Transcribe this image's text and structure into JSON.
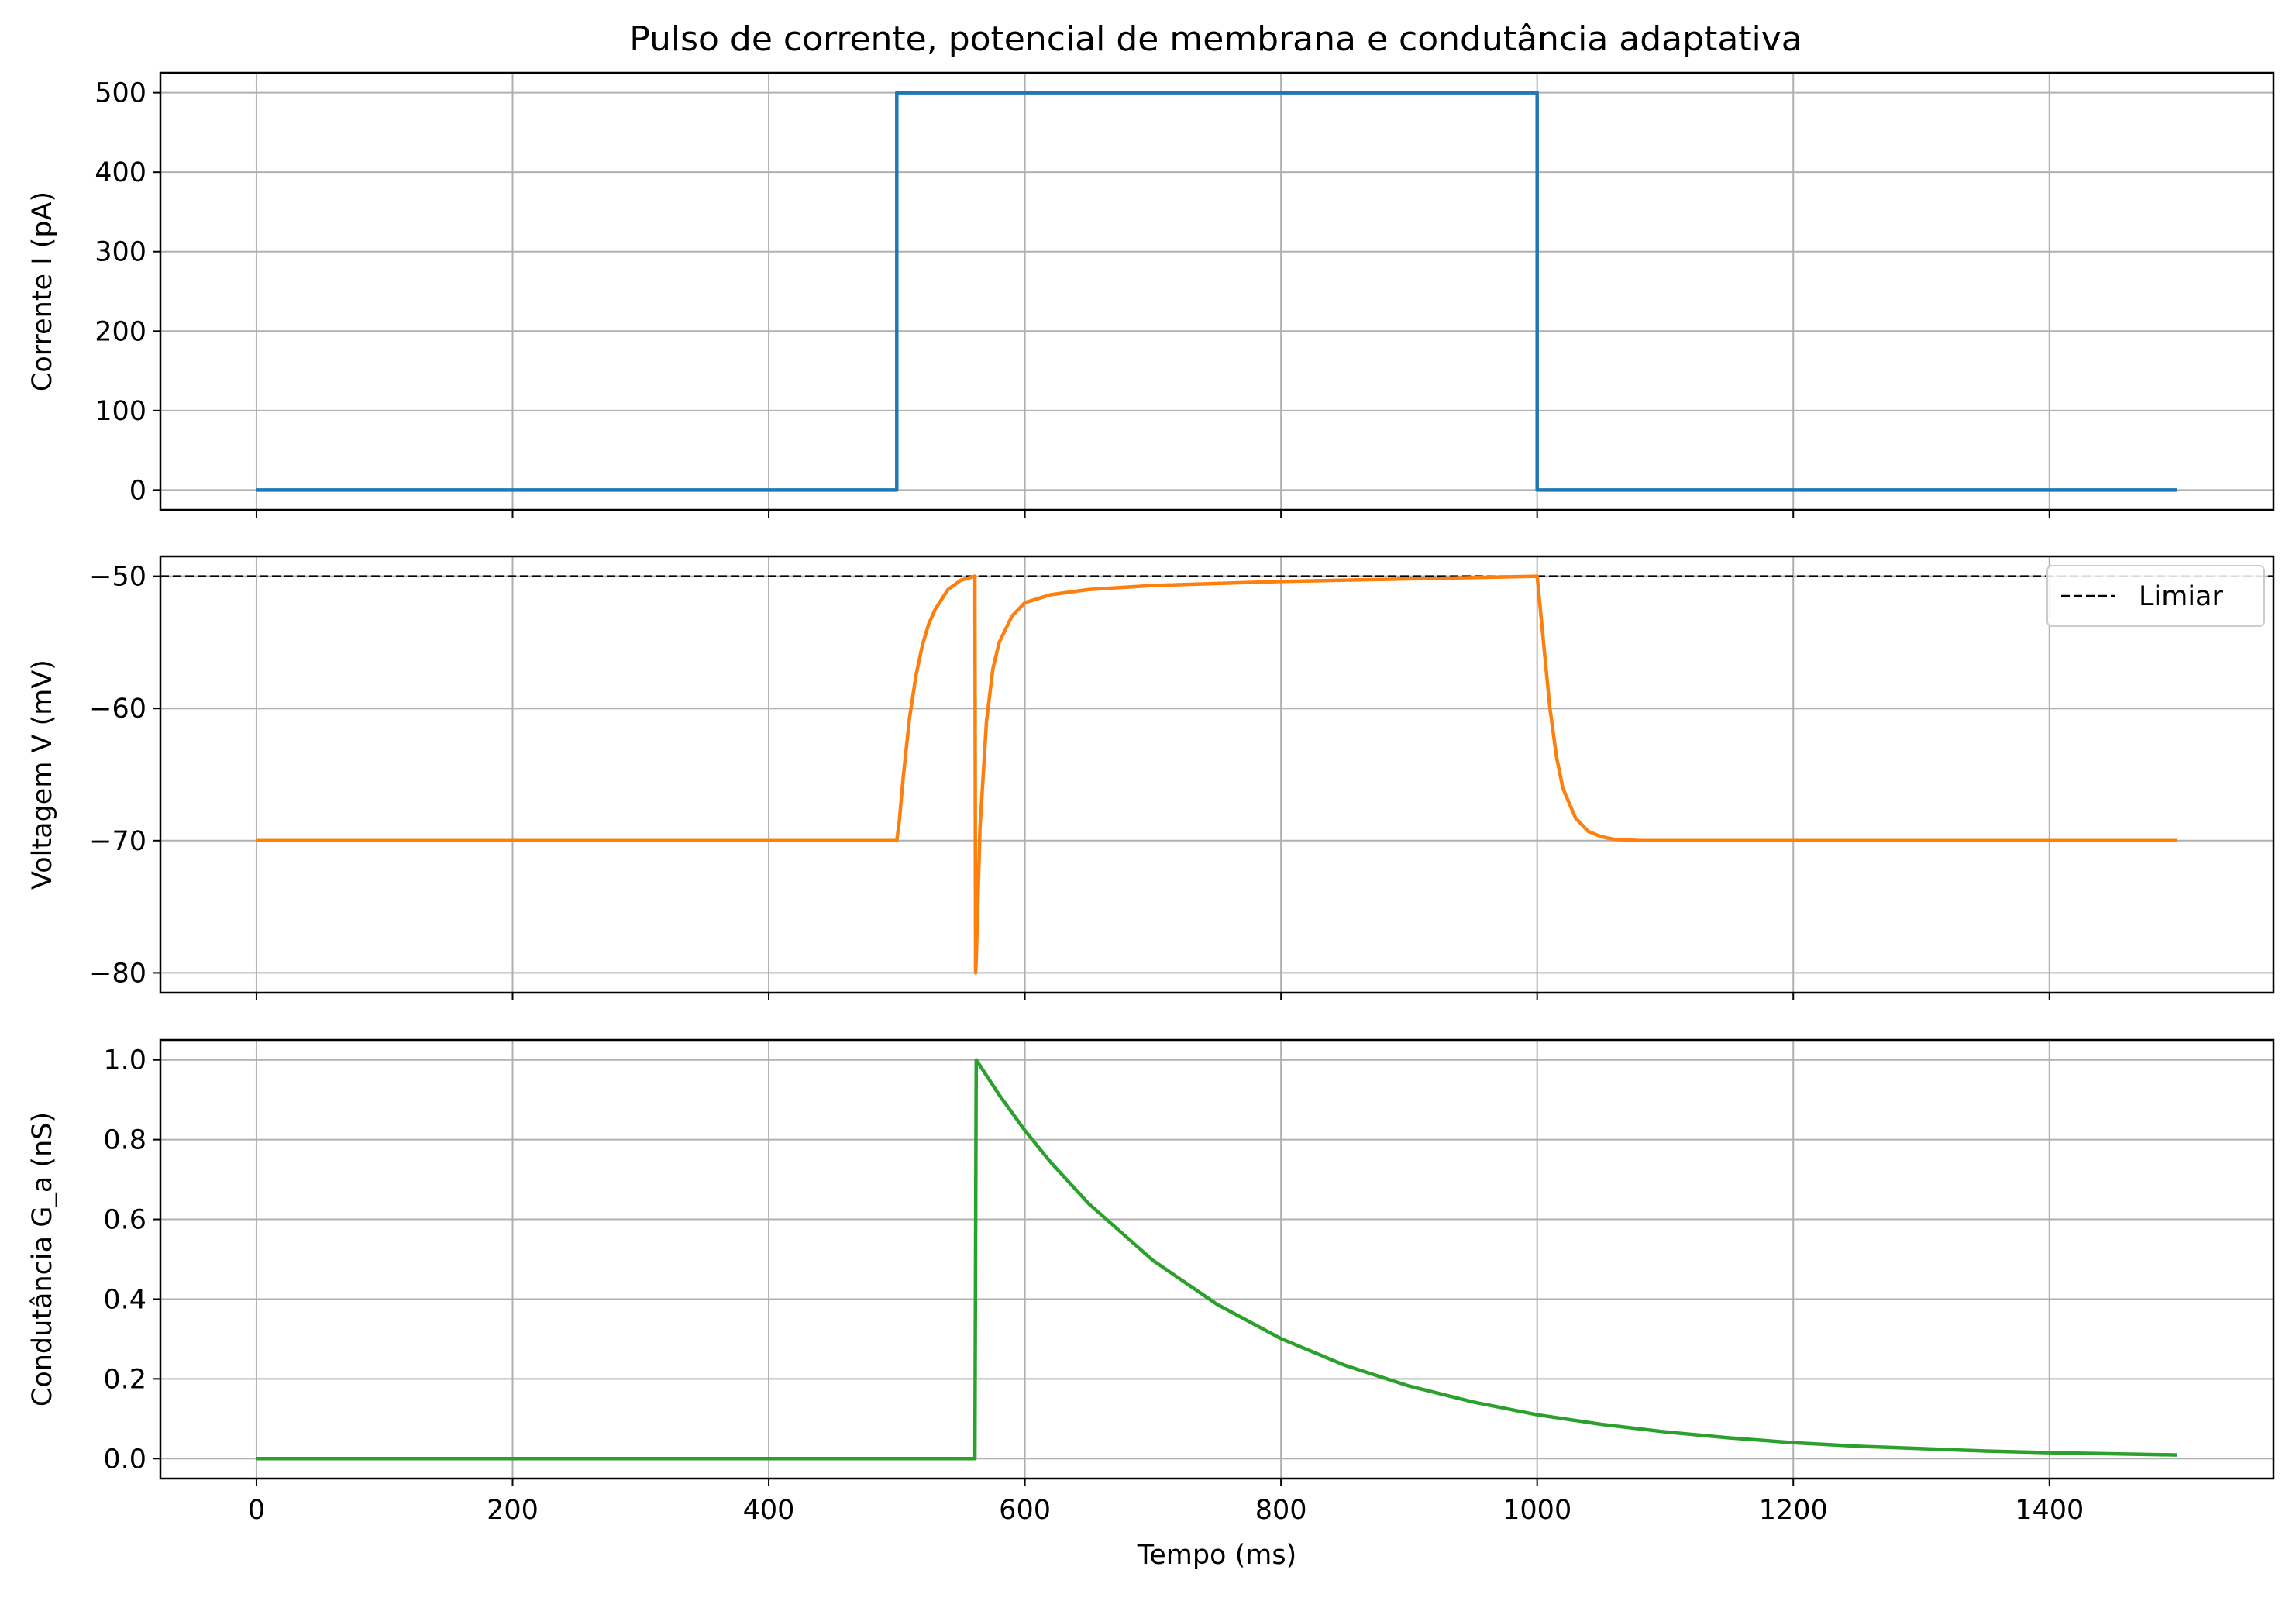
{
  "figure": {
    "title": "Pulso de corrente, potencial de membrana e condutância adaptativa"
  },
  "chart_data": [
    {
      "type": "line",
      "xlabel": "",
      "ylabel": "Corrente I (pA)",
      "xlim": [
        -75,
        1575
      ],
      "ylim": [
        -25,
        525
      ],
      "grid": true,
      "yticks": [
        0,
        100,
        200,
        300,
        400,
        500
      ],
      "xticks": [
        0,
        200,
        400,
        600,
        800,
        1000,
        1200,
        1400
      ],
      "show_xtick_labels": false,
      "series": [
        {
          "color": "#1f77b4",
          "x": [
            0,
            500,
            500,
            1000,
            1000,
            1500
          ],
          "y": [
            0,
            0,
            500,
            500,
            0,
            0
          ]
        }
      ]
    },
    {
      "type": "line",
      "xlabel": "",
      "ylabel": "Voltagem V (mV)",
      "xlim": [
        -75,
        1575
      ],
      "ylim": [
        -81.5,
        -48.5
      ],
      "grid": true,
      "yticks": [
        -80,
        -70,
        -60,
        -50
      ],
      "xticks": [
        0,
        200,
        400,
        600,
        800,
        1000,
        1200,
        1400
      ],
      "show_xtick_labels": false,
      "legend": {
        "placement": "upper right",
        "entries": [
          "Limiar"
        ]
      },
      "hlines": [
        {
          "y": -50,
          "name": "Limiar",
          "color": "#000000",
          "style": "dashed"
        }
      ],
      "series": [
        {
          "color": "#ff7f0e",
          "x": [
            0,
            500,
            502,
            505,
            510,
            515,
            520,
            525,
            530,
            540,
            550,
            561,
            561.5,
            562,
            565,
            570,
            575,
            580,
            590,
            600,
            620,
            650,
            700,
            800,
            900,
            1000,
            1002,
            1005,
            1010,
            1015,
            1020,
            1030,
            1040,
            1050,
            1060,
            1080,
            1100,
            1200,
            1300,
            1400,
            1500
          ],
          "y": [
            -70,
            -70,
            -68.5,
            -65.2,
            -60.7,
            -57.5,
            -55.2,
            -53.6,
            -52.5,
            -51.0,
            -50.3,
            -50,
            -80,
            -79,
            -69,
            -61,
            -57,
            -55,
            -53,
            -52,
            -51.4,
            -51,
            -50.7,
            -50.4,
            -50.2,
            -50,
            -52,
            -55,
            -60,
            -63.6,
            -66,
            -68.3,
            -69.3,
            -69.7,
            -69.9,
            -70,
            -70,
            -70,
            -70,
            -70,
            -70
          ]
        }
      ]
    },
    {
      "type": "line",
      "xlabel": "Tempo (ms)",
      "ylabel": "Condutância G_a (nS)",
      "xlim": [
        -75,
        1575
      ],
      "ylim": [
        -0.05,
        1.05
      ],
      "grid": true,
      "yticks": [
        0.0,
        0.2,
        0.4,
        0.6,
        0.8,
        1.0
      ],
      "ytick_labels": [
        "0.0",
        "0.2",
        "0.4",
        "0.6",
        "0.8",
        "1.0"
      ],
      "xticks": [
        0,
        200,
        400,
        600,
        800,
        1000,
        1200,
        1400
      ],
      "show_xtick_labels": true,
      "series": [
        {
          "color": "#2ca02c",
          "x": [
            0,
            561,
            562,
            580,
            600,
            620,
            650,
            700,
            750,
            800,
            850,
            900,
            950,
            1000,
            1050,
            1100,
            1150,
            1200,
            1250,
            1300,
            1350,
            1400,
            1450,
            1500
          ],
          "y": [
            0,
            0,
            1.0,
            0.912,
            0.823,
            0.744,
            0.639,
            0.497,
            0.387,
            0.301,
            0.234,
            0.182,
            0.142,
            0.11,
            0.086,
            0.067,
            0.052,
            0.04,
            0.031,
            0.025,
            0.019,
            0.015,
            0.012,
            0.009
          ]
        }
      ]
    }
  ]
}
